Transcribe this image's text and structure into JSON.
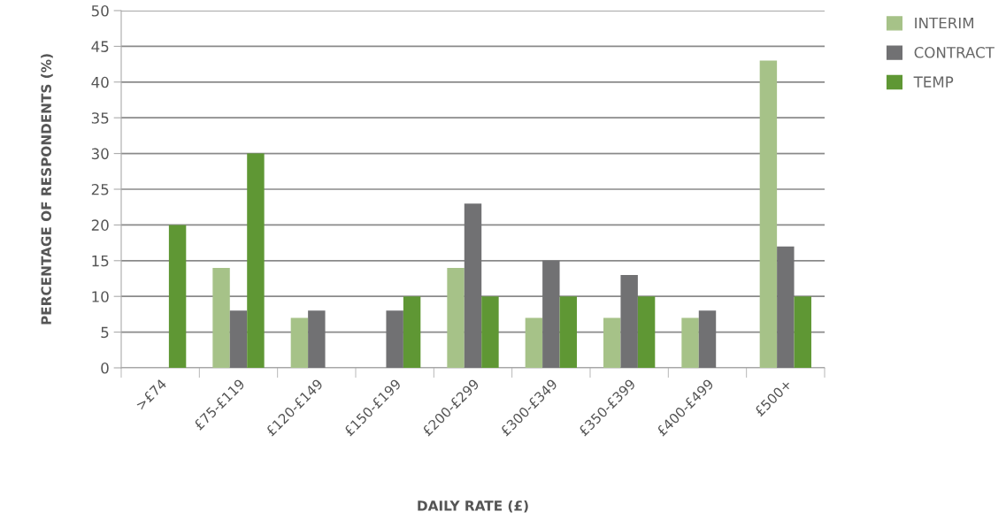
{
  "chart_data": {
    "type": "bar",
    "xlabel": "DAILY RATE (£)",
    "ylabel": "PERCENTAGE OF RESPONDENTS (%)",
    "categories": [
      ">£74",
      "£75-£119",
      "£120-£149",
      "£150-£199",
      "£200-£299",
      "£300-£349",
      "£350-£399",
      "£400-£499",
      "£500+"
    ],
    "series": [
      {
        "name": "INTERIM",
        "color": "#a6c288",
        "values": [
          null,
          14,
          7,
          null,
          14,
          7,
          7,
          7,
          43
        ]
      },
      {
        "name": "CONTRACT",
        "color": "#717173",
        "values": [
          null,
          8,
          8,
          8,
          23,
          15,
          13,
          8,
          17
        ]
      },
      {
        "name": "TEMP",
        "color": "#5f9734",
        "values": [
          20,
          30,
          null,
          10,
          10,
          10,
          10,
          null,
          10
        ]
      }
    ],
    "ylim": [
      0,
      50
    ],
    "yticks": [
      0,
      5,
      10,
      15,
      20,
      25,
      30,
      35,
      40,
      45,
      50
    ],
    "grid": "y",
    "legend": "top right"
  }
}
